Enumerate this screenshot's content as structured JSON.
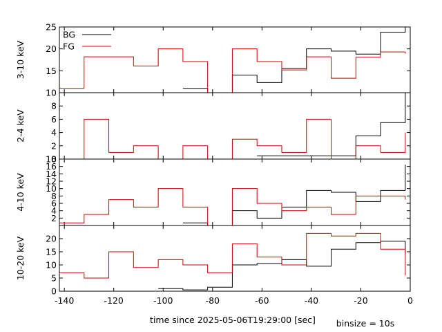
{
  "figure": {
    "xlabel": "time since 2025-05-06T19:29:00 [sec]",
    "note": "binsize = 10s"
  },
  "colors": {
    "bg": "#000000",
    "fg": "#cc0000",
    "frame": "#000000"
  },
  "chart_data": [
    {
      "type": "line",
      "step": true,
      "ylabel": "3-10 keV",
      "xlim": [
        -142,
        0
      ],
      "ylim": [
        10,
        25
      ],
      "yticks": [
        10,
        15,
        20,
        25
      ],
      "xticks": [
        -140,
        -120,
        -100,
        -80,
        -60,
        -40,
        -20,
        0
      ],
      "legend": {
        "placement": "top-left",
        "entries": [
          "BG",
          "FG"
        ]
      },
      "series": [
        {
          "name": "BG",
          "color": "#000000",
          "edges": [
            -92,
            -82,
            -72,
            -62,
            -52,
            -42,
            -32,
            -22,
            -12,
            -2
          ],
          "values": [
            11,
            null,
            14,
            12.3,
            15.5,
            20,
            19.5,
            18.8,
            23.8
          ],
          "final": 30.5
        },
        {
          "name": "FG",
          "color": "#cc0000",
          "edges": [
            -142,
            -132,
            -122,
            -112,
            -102,
            -92,
            -82,
            -72,
            -62,
            -52,
            -42,
            -32,
            -22,
            -12,
            -2
          ],
          "values": [
            11,
            18.2,
            18.2,
            16.1,
            20,
            17.1,
            null,
            20,
            17.1,
            15.2,
            18.2,
            13.3,
            18.1,
            19.3
          ],
          "final": 18.9
        }
      ]
    },
    {
      "type": "line",
      "step": true,
      "ylabel": "2-4 keV",
      "xlim": [
        -142,
        0
      ],
      "ylim": [
        0,
        10
      ],
      "yticks": [
        0,
        2,
        4,
        6,
        8
      ],
      "xticks": [
        -140,
        -120,
        -100,
        -80,
        -60,
        -40,
        -20,
        0
      ],
      "series": [
        {
          "name": "BG",
          "color": "#000000",
          "edges": [
            -62,
            -52,
            -42,
            -32,
            -22,
            -12,
            -2
          ],
          "values": [
            0.5,
            0.5,
            0.5,
            0.5,
            3.5,
            5.5
          ],
          "final": 10
        },
        {
          "name": "FG",
          "color": "#cc0000",
          "edges": [
            -142,
            -132,
            -122,
            -112,
            -102,
            -92,
            -82,
            -72,
            -62,
            -52,
            -42,
            -32,
            -22,
            -12,
            -2
          ],
          "values": [
            null,
            6,
            1,
            2,
            null,
            2,
            null,
            3,
            2,
            1,
            6,
            null,
            2,
            1
          ],
          "final": 4
        }
      ]
    },
    {
      "type": "line",
      "step": true,
      "ylabel": "4-10 keV",
      "xlim": [
        -142,
        0
      ],
      "ylim": [
        0,
        18
      ],
      "yticks": [
        2,
        4,
        6,
        8,
        10,
        12,
        14,
        16,
        18
      ],
      "xticks": [
        -140,
        -120,
        -100,
        -80,
        -60,
        -40,
        -20,
        0
      ],
      "series": [
        {
          "name": "BG",
          "color": "#000000",
          "edges": [
            -92,
            -82,
            -72,
            -62,
            -52,
            -42,
            -32,
            -22,
            -12,
            -2
          ],
          "values": [
            0.7,
            null,
            4,
            2,
            5,
            9.5,
            9,
            6.5,
            9.5
          ],
          "final": 16.5
        },
        {
          "name": "FG",
          "color": "#cc0000",
          "edges": [
            -142,
            -132,
            -122,
            -112,
            -102,
            -92,
            -82,
            -72,
            -62,
            -52,
            -42,
            -32,
            -22,
            -12,
            -2
          ],
          "values": [
            0.7,
            3,
            7,
            5,
            10,
            5,
            null,
            10,
            6,
            4,
            5,
            3,
            8,
            8
          ],
          "final": 7
        }
      ]
    },
    {
      "type": "line",
      "step": true,
      "ylabel": "10-20 keV",
      "xlim": [
        -142,
        0
      ],
      "ylim": [
        0,
        25
      ],
      "yticks": [
        0,
        5,
        10,
        15,
        20
      ],
      "xticks": [
        -140,
        -120,
        -100,
        -80,
        -60,
        -40,
        -20,
        0
      ],
      "xticklabels": [
        "-140",
        "-120",
        "-100",
        "-80",
        "-60",
        "-40",
        "-20",
        "0"
      ],
      "series": [
        {
          "name": "BG",
          "color": "#000000",
          "edges": [
            -102,
            -92,
            -82,
            -72,
            -62,
            -52,
            -42,
            -32,
            -22,
            -12,
            -2
          ],
          "values": [
            1,
            0.5,
            1.5,
            10,
            10.5,
            12,
            9.5,
            16,
            18.5,
            19
          ],
          "final": 14
        },
        {
          "name": "FG",
          "color": "#cc0000",
          "edges": [
            -142,
            -132,
            -122,
            -112,
            -102,
            -92,
            -82,
            -72,
            -62,
            -52,
            -42,
            -32,
            -22,
            -12,
            -2
          ],
          "values": [
            7,
            5,
            15,
            9,
            12,
            10,
            7,
            18,
            13,
            10,
            22,
            21,
            22,
            16
          ],
          "final": 6
        }
      ]
    }
  ]
}
